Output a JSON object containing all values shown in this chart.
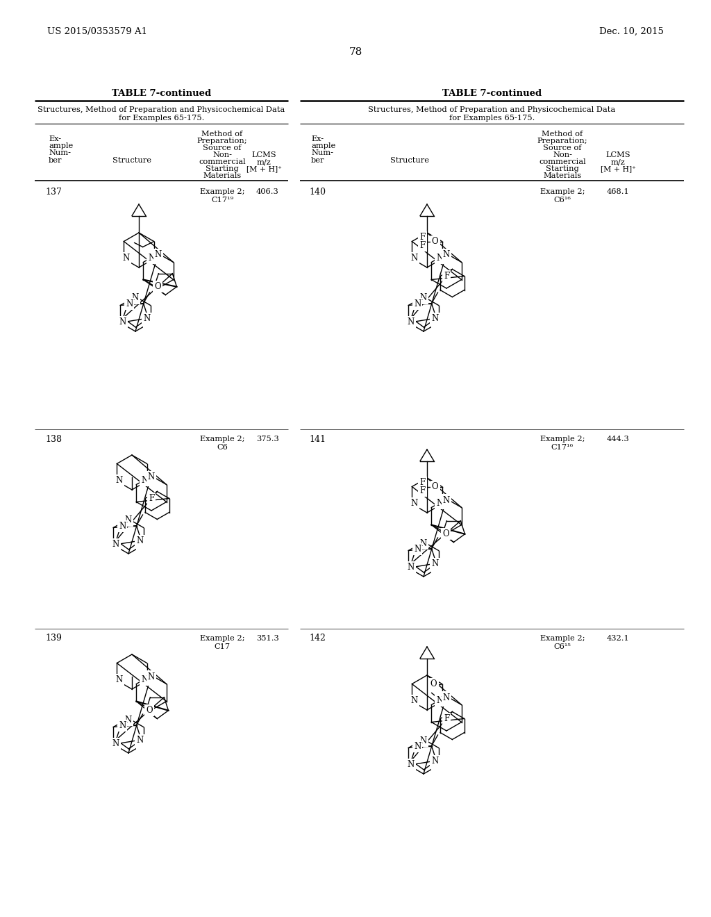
{
  "page_header_left": "US 2015/0353579 A1",
  "page_header_right": "Dec. 10, 2015",
  "page_number": "78",
  "table_title": "TABLE 7-continued",
  "subtitle1": "Structures, Method of Preparation and Physicochemical Data",
  "subtitle2": "for Examples 65-175.",
  "bg_color": "#ffffff"
}
